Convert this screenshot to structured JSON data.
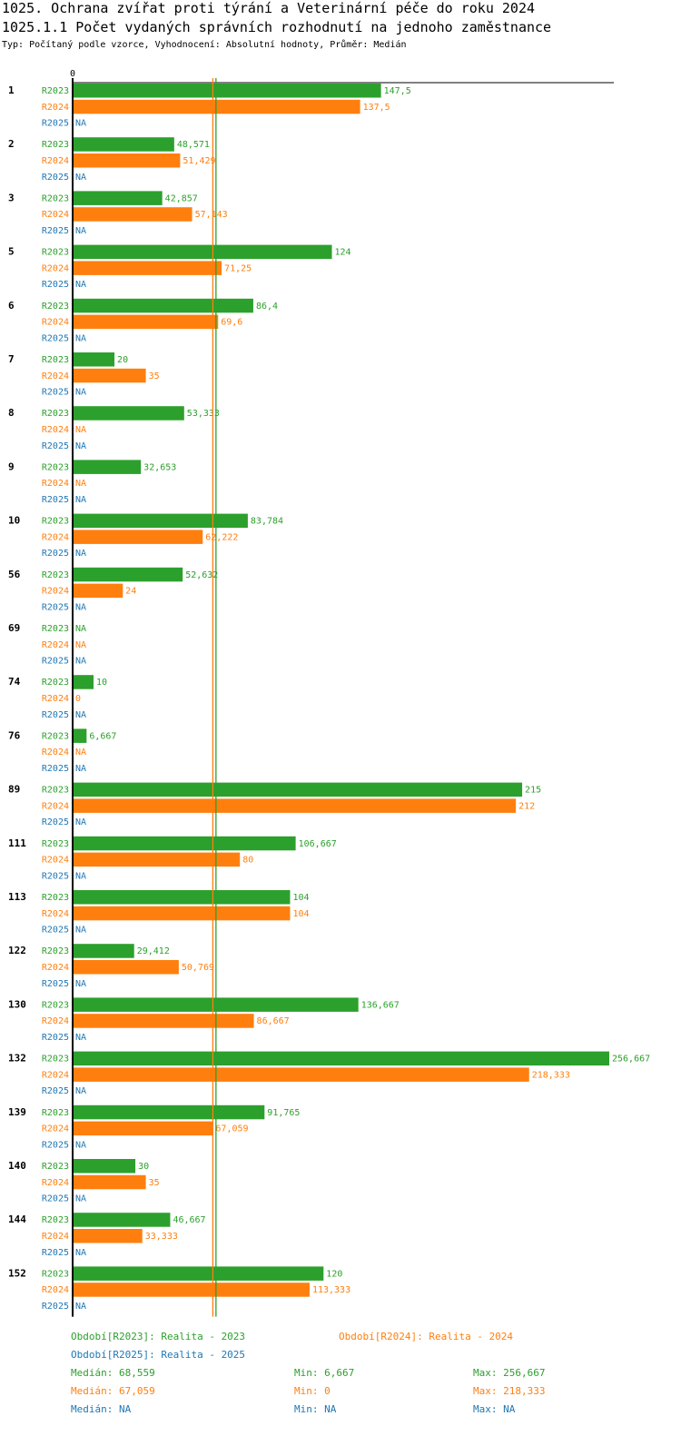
{
  "title": "1025. Ochrana zvířat proti týrání a Veterinární péče do roku 2024",
  "subtitle": "1025.1.1 Počet vydaných správních rozhodnutí na jednoho zaměstnance",
  "meta": "Typ: Počítaný podle vzorce, Vyhodnocení: Absolutní hodnoty, Průměr: Medián",
  "colors": {
    "R2023": "#2ca02c",
    "R2024": "#ff7f0e",
    "R2025": "#1f77b4"
  },
  "chart_data": {
    "type": "bar",
    "orientation": "horizontal",
    "title": "1025.1.1 Počet vydaných správních rozhodnutí na jednoho zaměstnance",
    "xmin_label": "0",
    "xlim": [
      0,
      256.667
    ],
    "categories": [
      "1",
      "2",
      "3",
      "5",
      "6",
      "7",
      "8",
      "9",
      "10",
      "56",
      "69",
      "74",
      "76",
      "89",
      "111",
      "113",
      "122",
      "130",
      "132",
      "139",
      "140",
      "144",
      "152"
    ],
    "series": [
      {
        "name": "R2023",
        "values": [
          147.5,
          48.571,
          42.857,
          124,
          86.4,
          20,
          53.333,
          32.653,
          83.784,
          52.632,
          null,
          10,
          6.667,
          215,
          106.667,
          104,
          29.412,
          136.667,
          256.667,
          91.765,
          30,
          46.667,
          120
        ],
        "labels": [
          "147,5",
          "48,571",
          "42,857",
          "124",
          "86,4",
          "20",
          "53,333",
          "32,653",
          "83,784",
          "52,632",
          "NA",
          "10",
          "6,667",
          "215",
          "106,667",
          "104",
          "29,412",
          "136,667",
          "256,667",
          "91,765",
          "30",
          "46,667",
          "120"
        ]
      },
      {
        "name": "R2024",
        "values": [
          137.5,
          51.429,
          57.143,
          71.25,
          69.6,
          35,
          null,
          null,
          62.222,
          24,
          null,
          0,
          null,
          212,
          80,
          104,
          50.769,
          86.667,
          218.333,
          67.059,
          35,
          33.333,
          113.333
        ],
        "labels": [
          "137,5",
          "51,429",
          "57,143",
          "71,25",
          "69,6",
          "35",
          "NA",
          "NA",
          "62,222",
          "24",
          "NA",
          "0",
          "NA",
          "212",
          "80",
          "104",
          "50,769",
          "86,667",
          "218,333",
          "67,059",
          "35",
          "33,333",
          "113,333"
        ]
      },
      {
        "name": "R2025",
        "values": [
          null,
          null,
          null,
          null,
          null,
          null,
          null,
          null,
          null,
          null,
          null,
          null,
          null,
          null,
          null,
          null,
          null,
          null,
          null,
          null,
          null,
          null,
          null
        ],
        "labels": [
          "NA",
          "NA",
          "NA",
          "NA",
          "NA",
          "NA",
          "NA",
          "NA",
          "NA",
          "NA",
          "NA",
          "NA",
          "NA",
          "NA",
          "NA",
          "NA",
          "NA",
          "NA",
          "NA",
          "NA",
          "NA",
          "NA",
          "NA"
        ]
      }
    ],
    "median_lines": [
      {
        "series": "R2023",
        "value": 68.559
      },
      {
        "series": "R2024",
        "value": 67.059
      }
    ]
  },
  "legend": {
    "r2023": "Období[R2023]: Realita - 2023",
    "r2024": "Období[R2024]: Realita - 2024",
    "r2025": "Období[R2025]: Realita - 2025"
  },
  "stats": {
    "r2023": {
      "median": "Medián: 68,559",
      "min": "Min: 6,667",
      "max": "Max: 256,667"
    },
    "r2024": {
      "median": "Medián: 67,059",
      "min": "Min: 0",
      "max": "Max: 218,333"
    },
    "r2025": {
      "median": "Medián: NA",
      "min": "Min: NA",
      "max": "Max: NA"
    }
  }
}
